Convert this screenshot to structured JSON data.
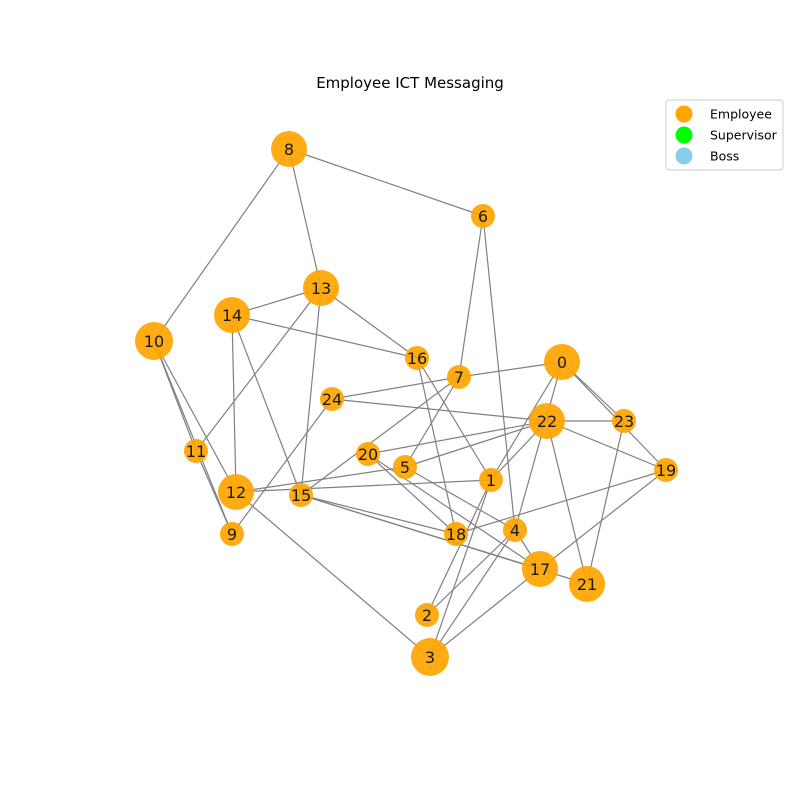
{
  "title": "Employee ICT Messaging",
  "colors": {
    "edge": "#808080",
    "employee": "#FFA500",
    "supervisor": "#00FF00",
    "boss": "#87CEEB"
  },
  "legend": [
    {
      "label": "Employee",
      "color": "#FFA500"
    },
    {
      "label": "Supervisor",
      "color": "#00FF00"
    },
    {
      "label": "Boss",
      "color": "#87CEEB"
    }
  ],
  "nodes": [
    {
      "id": "0",
      "role": "employee"
    },
    {
      "id": "1",
      "role": "employee"
    },
    {
      "id": "2",
      "role": "employee"
    },
    {
      "id": "3",
      "role": "employee"
    },
    {
      "id": "4",
      "role": "employee"
    },
    {
      "id": "5",
      "role": "employee"
    },
    {
      "id": "6",
      "role": "employee"
    },
    {
      "id": "7",
      "role": "employee"
    },
    {
      "id": "8",
      "role": "employee"
    },
    {
      "id": "9",
      "role": "employee"
    },
    {
      "id": "10",
      "role": "employee"
    },
    {
      "id": "11",
      "role": "employee"
    },
    {
      "id": "12",
      "role": "employee"
    },
    {
      "id": "13",
      "role": "employee"
    },
    {
      "id": "14",
      "role": "employee"
    },
    {
      "id": "15",
      "role": "employee"
    },
    {
      "id": "16",
      "role": "employee"
    },
    {
      "id": "17",
      "role": "employee"
    },
    {
      "id": "18",
      "role": "employee"
    },
    {
      "id": "19",
      "role": "employee"
    },
    {
      "id": "20",
      "role": "employee"
    },
    {
      "id": "21",
      "role": "employee"
    },
    {
      "id": "22",
      "role": "employee"
    },
    {
      "id": "23",
      "role": "employee"
    },
    {
      "id": "24",
      "role": "employee"
    }
  ],
  "edges": [
    [
      "8",
      "6"
    ],
    [
      "8",
      "10"
    ],
    [
      "8",
      "13"
    ],
    [
      "6",
      "7"
    ],
    [
      "6",
      "4"
    ],
    [
      "13",
      "14"
    ],
    [
      "13",
      "16"
    ],
    [
      "13",
      "11"
    ],
    [
      "13",
      "15"
    ],
    [
      "14",
      "16"
    ],
    [
      "14",
      "12"
    ],
    [
      "14",
      "15"
    ],
    [
      "16",
      "18"
    ],
    [
      "16",
      "1"
    ],
    [
      "10",
      "11"
    ],
    [
      "10",
      "12"
    ],
    [
      "10",
      "9"
    ],
    [
      "11",
      "9"
    ],
    [
      "7",
      "0"
    ],
    [
      "7",
      "5"
    ],
    [
      "7",
      "24"
    ],
    [
      "7",
      "15"
    ],
    [
      "0",
      "1"
    ],
    [
      "0",
      "4"
    ],
    [
      "0",
      "23"
    ],
    [
      "0",
      "19"
    ],
    [
      "24",
      "22"
    ],
    [
      "24",
      "9"
    ],
    [
      "22",
      "23"
    ],
    [
      "22",
      "19"
    ],
    [
      "22",
      "20"
    ],
    [
      "22",
      "5"
    ],
    [
      "22",
      "1"
    ],
    [
      "22",
      "21"
    ],
    [
      "23",
      "21"
    ],
    [
      "20",
      "18"
    ],
    [
      "20",
      "17"
    ],
    [
      "5",
      "4"
    ],
    [
      "12",
      "1"
    ],
    [
      "12",
      "5"
    ],
    [
      "12",
      "3"
    ],
    [
      "15",
      "18"
    ],
    [
      "15",
      "17"
    ],
    [
      "15",
      "21"
    ],
    [
      "1",
      "3"
    ],
    [
      "1",
      "2"
    ],
    [
      "19",
      "18"
    ],
    [
      "19",
      "17"
    ],
    [
      "4",
      "2"
    ],
    [
      "4",
      "3"
    ],
    [
      "4",
      "17"
    ],
    [
      "17",
      "3"
    ]
  ]
}
